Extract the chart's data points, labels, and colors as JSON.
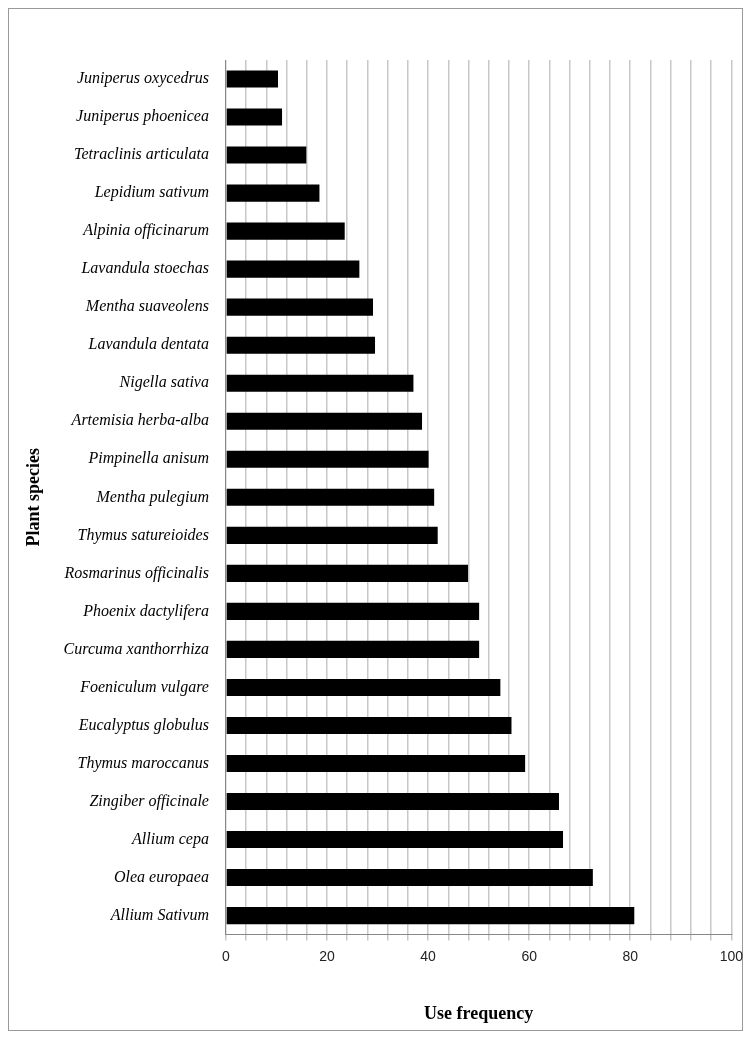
{
  "chart_data": {
    "type": "bar",
    "orientation": "horizontal",
    "xlabel": "Use frequency",
    "ylabel": "Plant species",
    "categories": [
      "Juniperus oxycedrus",
      "Juniperus phoenicea",
      "Tetraclinis articulata",
      "Lepidium sativum",
      "Alpinia officinarum",
      "Lavandula stoechas",
      "Mentha suaveolens",
      "Lavandula dentata",
      "Nigella sativa",
      "Artemisia herba-alba",
      "Pimpinella anisum",
      "Mentha pulegium",
      "Thymus satureioides",
      "Rosmarinus officinalis",
      "Phoenix dactylifera",
      "Curcuma xanthorrhiza",
      "Foeniculum vulgare",
      "Eucalyptus globulus",
      "Thymus maroccanus",
      "Zingiber officinale",
      "Allium cepa",
      "Olea europaea",
      "Allium Sativum"
    ],
    "values": [
      10.3,
      11.1,
      15.9,
      18.5,
      23.5,
      26.4,
      29.1,
      29.5,
      37.1,
      38.8,
      40.1,
      41.2,
      41.9,
      47.9,
      50.1,
      50.1,
      54.3,
      56.5,
      59.2,
      65.9,
      66.7,
      72.6,
      80.8
    ],
    "color": "#000000",
    "xlim": [
      0,
      100
    ],
    "xticks": [
      0,
      {
        "value": 4,
        "label": null
      },
      {
        "value": 8,
        "label": null
      },
      {
        "value": 12,
        "label": null
      },
      {
        "value": 16,
        "label": null
      },
      20,
      {
        "value": 24,
        "label": null
      },
      {
        "value": 28,
        "label": null
      },
      {
        "value": 32,
        "label": null
      },
      {
        "value": 36,
        "label": null
      },
      40,
      {
        "value": 44,
        "label": null
      },
      {
        "value": 48,
        "label": null
      },
      {
        "value": 52,
        "label": null
      },
      {
        "value": 56,
        "label": null
      },
      60,
      {
        "value": 64,
        "label": null
      },
      {
        "value": 68,
        "label": null
      },
      {
        "value": 72,
        "label": null
      },
      {
        "value": 76,
        "label": null
      },
      80,
      {
        "value": 84,
        "label": null
      },
      {
        "value": 88,
        "label": null
      },
      {
        "value": 92,
        "label": null
      },
      {
        "value": 96,
        "label": null
      },
      100
    ],
    "grid": "x",
    "legend": false
  }
}
